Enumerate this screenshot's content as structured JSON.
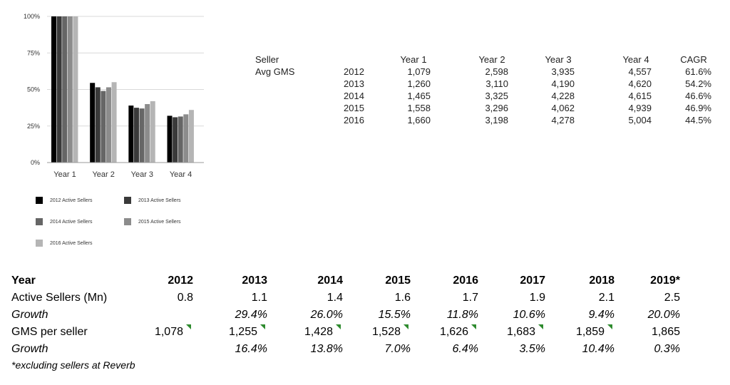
{
  "chart_data": {
    "type": "bar",
    "categories": [
      "Year 1",
      "Year 2",
      "Year 3",
      "Year 4"
    ],
    "y_ticks": [
      "100%",
      "75%",
      "50%",
      "25%",
      "0%"
    ],
    "ylim": [
      0,
      100
    ],
    "grid": true,
    "legend_position": "bottom",
    "series": [
      {
        "name": "2012 Active Sellers",
        "color": "#000000",
        "values": [
          100,
          54.5,
          39,
          32
        ]
      },
      {
        "name": "2013 Active Sellers",
        "color": "#3a3a3a",
        "values": [
          100,
          51.5,
          37.5,
          31
        ]
      },
      {
        "name": "2014 Active Sellers",
        "color": "#666666",
        "values": [
          100,
          49,
          37,
          31.5
        ]
      },
      {
        "name": "2015 Active Sellers",
        "color": "#8c8c8c",
        "values": [
          100,
          51.5,
          40,
          33
        ]
      },
      {
        "name": "2016 Active Sellers",
        "color": "#b5b5b5",
        "values": [
          100,
          55,
          42,
          36
        ]
      }
    ]
  },
  "right_table": {
    "label_line1": "Seller",
    "label_line2": "Avg GMS",
    "headers": [
      "Year 1",
      "Year 2",
      "Year 3",
      "Year 4",
      "CAGR"
    ],
    "rows": [
      {
        "year": "2012",
        "cells": [
          "1,079",
          "2,598",
          "3,935",
          "4,557",
          "61.6%"
        ]
      },
      {
        "year": "2013",
        "cells": [
          "1,260",
          "3,110",
          "4,190",
          "4,620",
          "54.2%"
        ]
      },
      {
        "year": "2014",
        "cells": [
          "1,465",
          "3,325",
          "4,228",
          "4,615",
          "46.6%"
        ]
      },
      {
        "year": "2015",
        "cells": [
          "1,558",
          "3,296",
          "4,062",
          "4,939",
          "46.9%"
        ]
      },
      {
        "year": "2016",
        "cells": [
          "1,660",
          "3,198",
          "4,278",
          "5,004",
          "44.5%"
        ]
      }
    ]
  },
  "bottom_table": {
    "header_label": "Year",
    "years": [
      "2012",
      "2013",
      "2014",
      "2015",
      "2016",
      "2017",
      "2018",
      "2019*"
    ],
    "rows": [
      {
        "label": "Active Sellers (Mn)",
        "italic": false,
        "flags": false,
        "values": [
          "0.8",
          "1.1",
          "1.4",
          "1.6",
          "1.7",
          "1.9",
          "2.1",
          "2.5"
        ]
      },
      {
        "label": "Growth",
        "italic": true,
        "flags": false,
        "values": [
          "",
          "29.4%",
          "26.0%",
          "15.5%",
          "11.8%",
          "10.6%",
          "9.4%",
          "20.0%"
        ]
      },
      {
        "label": "GMS per seller",
        "italic": false,
        "flags": true,
        "values": [
          "1,078",
          "1,255",
          "1,428",
          "1,528",
          "1,626",
          "1,683",
          "1,859",
          "1,865"
        ]
      },
      {
        "label": "Growth",
        "italic": true,
        "flags": false,
        "values": [
          "",
          "16.4%",
          "13.8%",
          "7.0%",
          "6.4%",
          "3.5%",
          "10.4%",
          "0.3%"
        ]
      }
    ],
    "footnote": "*excluding sellers at Reverb"
  }
}
